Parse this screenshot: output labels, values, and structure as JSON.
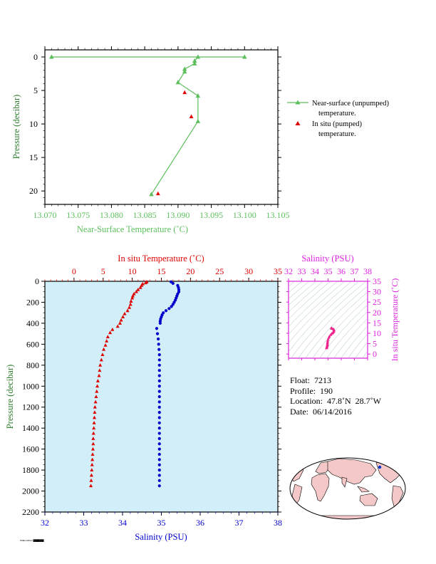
{
  "chart_data": [
    {
      "type": "line",
      "xlabel": "Near-Surface Temperature (˚C)",
      "ylabel": "Pressure (decibar)",
      "xlim": [
        13.07,
        13.105
      ],
      "ylim": [
        0,
        22
      ],
      "y_inverted": true,
      "xticks": [
        "13.070",
        "13.075",
        "13.080",
        "13.085",
        "13.090",
        "13.095",
        "13.100",
        "13.105"
      ],
      "yticks": [
        "0",
        "5",
        "10",
        "15",
        "20"
      ],
      "legend_placement": "right",
      "legend": [
        {
          "line1": "Near-surface (unpumped)",
          "line2": "temperature."
        },
        {
          "line1": "In situ (pumped)",
          "line2": "temperature."
        }
      ],
      "series": [
        {
          "name": "Near-surface (unpumped) temperature.",
          "color": "#5cbf5c",
          "points": [
            {
              "x": 13.071,
              "y": 0.0
            },
            {
              "x": 13.1,
              "y": 0.0
            },
            {
              "x": 13.093,
              "y": 0.0
            },
            {
              "x": 13.0925,
              "y": 0.6
            },
            {
              "x": 13.0925,
              "y": 1.0
            },
            {
              "x": 13.091,
              "y": 1.8
            },
            {
              "x": 13.091,
              "y": 2.2
            },
            {
              "x": 13.09,
              "y": 3.8
            },
            {
              "x": 13.093,
              "y": 5.8
            },
            {
              "x": 13.093,
              "y": 9.6
            },
            {
              "x": 13.086,
              "y": 20.5
            }
          ]
        },
        {
          "name": "In situ (pumped) temperature.",
          "color": "#dd0000",
          "points": [
            {
              "x": 13.091,
              "y": 5.3
            },
            {
              "x": 13.092,
              "y": 8.9
            },
            {
              "x": 13.087,
              "y": 20.4
            }
          ]
        }
      ]
    },
    {
      "type": "scatter",
      "top_axis_label": "In situ Temperature (˚C)",
      "top_xlim": [
        -5,
        35
      ],
      "top_xticks": [
        "0",
        "5",
        "10",
        "15",
        "20",
        "25",
        "30",
        "35"
      ],
      "bottom_axis_label": "Salinity (PSU)",
      "bottom_xlim": [
        32,
        38
      ],
      "bottom_xticks": [
        "32",
        "33",
        "34",
        "35",
        "36",
        "37",
        "38"
      ],
      "ylabel": "Pressure (decibar)",
      "ylim": [
        0,
        2200
      ],
      "y_inverted": true,
      "yticks": [
        "0",
        "200",
        "400",
        "600",
        "800",
        "1000",
        "1200",
        "1400",
        "1600",
        "1800",
        "2000",
        "2200"
      ],
      "background": "#d2eef8",
      "series": [
        {
          "name": "In situ Temperature (˚C)",
          "color": "#dd0000",
          "points": [
            {
              "x": 12.5,
              "y": 5
            },
            {
              "x": 12.3,
              "y": 15
            },
            {
              "x": 11.8,
              "y": 25
            },
            {
              "x": 11.6,
              "y": 40
            },
            {
              "x": 11.4,
              "y": 60
            },
            {
              "x": 11.0,
              "y": 80
            },
            {
              "x": 10.7,
              "y": 100
            },
            {
              "x": 10.3,
              "y": 120
            },
            {
              "x": 10.1,
              "y": 140
            },
            {
              "x": 10.0,
              "y": 160
            },
            {
              "x": 9.8,
              "y": 190
            },
            {
              "x": 9.7,
              "y": 220
            },
            {
              "x": 9.5,
              "y": 250
            },
            {
              "x": 9.2,
              "y": 280
            },
            {
              "x": 8.7,
              "y": 310
            },
            {
              "x": 8.4,
              "y": 340
            },
            {
              "x": 8.1,
              "y": 370
            },
            {
              "x": 7.9,
              "y": 400
            },
            {
              "x": 7.5,
              "y": 430
            },
            {
              "x": 6.6,
              "y": 460
            },
            {
              "x": 6.2,
              "y": 490
            },
            {
              "x": 5.8,
              "y": 530
            },
            {
              "x": 5.6,
              "y": 570
            },
            {
              "x": 5.4,
              "y": 610
            },
            {
              "x": 5.1,
              "y": 650
            },
            {
              "x": 4.9,
              "y": 700
            },
            {
              "x": 4.7,
              "y": 750
            },
            {
              "x": 4.5,
              "y": 800
            },
            {
              "x": 4.4,
              "y": 850
            },
            {
              "x": 4.3,
              "y": 900
            },
            {
              "x": 4.1,
              "y": 950
            },
            {
              "x": 4.0,
              "y": 1000
            },
            {
              "x": 3.9,
              "y": 1050
            },
            {
              "x": 3.8,
              "y": 1100
            },
            {
              "x": 3.7,
              "y": 1150
            },
            {
              "x": 3.6,
              "y": 1200
            },
            {
              "x": 3.55,
              "y": 1250
            },
            {
              "x": 3.5,
              "y": 1300
            },
            {
              "x": 3.45,
              "y": 1350
            },
            {
              "x": 3.4,
              "y": 1400
            },
            {
              "x": 3.35,
              "y": 1450
            },
            {
              "x": 3.3,
              "y": 1500
            },
            {
              "x": 3.3,
              "y": 1550
            },
            {
              "x": 3.25,
              "y": 1600
            },
            {
              "x": 3.2,
              "y": 1650
            },
            {
              "x": 3.15,
              "y": 1700
            },
            {
              "x": 3.1,
              "y": 1750
            },
            {
              "x": 3.05,
              "y": 1800
            },
            {
              "x": 3.0,
              "y": 1850
            },
            {
              "x": 2.95,
              "y": 1900
            },
            {
              "x": 2.9,
              "y": 1950
            }
          ]
        },
        {
          "name": "Salinity (PSU)",
          "color": "#0000cc",
          "points": [
            {
              "x": 35.25,
              "y": 5
            },
            {
              "x": 35.3,
              "y": 20
            },
            {
              "x": 35.42,
              "y": 40
            },
            {
              "x": 35.44,
              "y": 60
            },
            {
              "x": 35.45,
              "y": 80
            },
            {
              "x": 35.45,
              "y": 100
            },
            {
              "x": 35.42,
              "y": 120
            },
            {
              "x": 35.4,
              "y": 140
            },
            {
              "x": 35.38,
              "y": 160
            },
            {
              "x": 35.36,
              "y": 180
            },
            {
              "x": 35.33,
              "y": 200
            },
            {
              "x": 35.3,
              "y": 220
            },
            {
              "x": 35.26,
              "y": 240
            },
            {
              "x": 35.2,
              "y": 260
            },
            {
              "x": 35.12,
              "y": 280
            },
            {
              "x": 35.05,
              "y": 300
            },
            {
              "x": 35.02,
              "y": 320
            },
            {
              "x": 35.0,
              "y": 340
            },
            {
              "x": 34.98,
              "y": 360
            },
            {
              "x": 34.97,
              "y": 380
            },
            {
              "x": 34.97,
              "y": 400
            },
            {
              "x": 34.88,
              "y": 450
            },
            {
              "x": 34.9,
              "y": 500
            },
            {
              "x": 34.92,
              "y": 550
            },
            {
              "x": 34.93,
              "y": 600
            },
            {
              "x": 34.94,
              "y": 650
            },
            {
              "x": 34.95,
              "y": 700
            },
            {
              "x": 34.95,
              "y": 750
            },
            {
              "x": 34.95,
              "y": 800
            },
            {
              "x": 34.95,
              "y": 850
            },
            {
              "x": 34.95,
              "y": 900
            },
            {
              "x": 34.95,
              "y": 950
            },
            {
              "x": 34.95,
              "y": 1000
            },
            {
              "x": 34.95,
              "y": 1050
            },
            {
              "x": 34.95,
              "y": 1100
            },
            {
              "x": 34.95,
              "y": 1150
            },
            {
              "x": 34.95,
              "y": 1200
            },
            {
              "x": 34.95,
              "y": 1250
            },
            {
              "x": 34.95,
              "y": 1300
            },
            {
              "x": 34.95,
              "y": 1350
            },
            {
              "x": 34.95,
              "y": 1400
            },
            {
              "x": 34.95,
              "y": 1450
            },
            {
              "x": 34.95,
              "y": 1500
            },
            {
              "x": 34.95,
              "y": 1550
            },
            {
              "x": 34.95,
              "y": 1600
            },
            {
              "x": 34.95,
              "y": 1650
            },
            {
              "x": 34.95,
              "y": 1700
            },
            {
              "x": 34.95,
              "y": 1750
            },
            {
              "x": 34.95,
              "y": 1800
            },
            {
              "x": 34.95,
              "y": 1850
            },
            {
              "x": 34.95,
              "y": 1900
            },
            {
              "x": 34.95,
              "y": 1950
            }
          ]
        }
      ]
    },
    {
      "type": "scatter",
      "top_axis_label": "Salinity (PSU)",
      "xlim": [
        32,
        38
      ],
      "xticks": [
        "32",
        "33",
        "34",
        "35",
        "36",
        "37",
        "38"
      ],
      "right_axis_label": "In situ Temperature (˚C)",
      "ylim": [
        -2,
        35
      ],
      "yticks": [
        "0",
        "5",
        "10",
        "15",
        "20",
        "25",
        "30",
        "35"
      ],
      "density_contours": true,
      "series": [
        {
          "name": "T-S profile",
          "color": "#ee2288",
          "points": [
            {
              "x": 34.88,
              "y": 2.9
            },
            {
              "x": 34.9,
              "y": 3.2
            },
            {
              "x": 34.92,
              "y": 3.6
            },
            {
              "x": 34.93,
              "y": 4.0
            },
            {
              "x": 34.95,
              "y": 4.5
            },
            {
              "x": 34.95,
              "y": 5.0
            },
            {
              "x": 34.96,
              "y": 5.5
            },
            {
              "x": 34.97,
              "y": 6.2
            },
            {
              "x": 35.0,
              "y": 7.0
            },
            {
              "x": 35.05,
              "y": 7.9
            },
            {
              "x": 35.1,
              "y": 8.5
            },
            {
              "x": 35.2,
              "y": 9.3
            },
            {
              "x": 35.28,
              "y": 9.8
            },
            {
              "x": 35.35,
              "y": 10.2
            },
            {
              "x": 35.4,
              "y": 10.6
            },
            {
              "x": 35.44,
              "y": 11.0
            },
            {
              "x": 35.45,
              "y": 11.5
            },
            {
              "x": 35.42,
              "y": 12.0
            },
            {
              "x": 35.3,
              "y": 12.3
            },
            {
              "x": 35.25,
              "y": 12.5
            }
          ]
        }
      ]
    },
    {
      "type": "map",
      "projection": "world",
      "marker_color": "#0033cc"
    }
  ],
  "info": {
    "float_label": "Float:",
    "float_value": "7213",
    "profile_label": "Profile:",
    "profile_value": "190",
    "location_label": "Location:",
    "location_value": "47.8˚N  28.7˚W",
    "date_label": "Date:",
    "date_value": "06/14/2016"
  },
  "colors": {
    "green": "#5cbf5c",
    "red": "#dd0000",
    "blue": "#0000cc",
    "magenta": "#dd22dd",
    "ts_points": "#ee2288",
    "profile_bg": "#d2eef8",
    "land": "#f4c8c8",
    "ocean": "#ffffff"
  },
  "footer_text": "PMEL/ARGO  ███████"
}
